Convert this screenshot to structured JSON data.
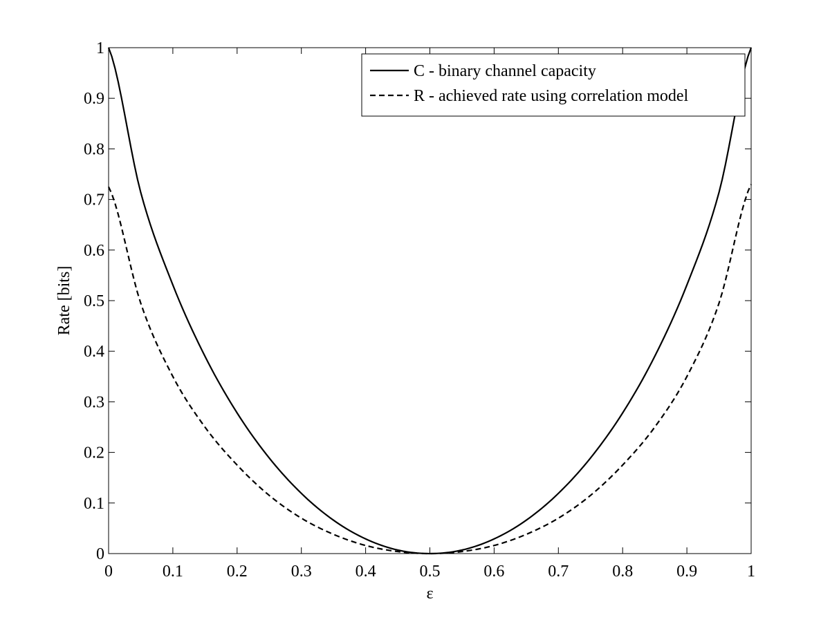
{
  "chart_data": {
    "type": "line",
    "xlabel": "ε",
    "ylabel": "Rate [bits]",
    "xlim": [
      0,
      1
    ],
    "ylim": [
      0,
      1
    ],
    "xticks": [
      "0",
      "0.1",
      "0.2",
      "0.3",
      "0.4",
      "0.5",
      "0.6",
      "0.7",
      "0.8",
      "0.9",
      "1"
    ],
    "yticks": [
      "0",
      "0.1",
      "0.2",
      "0.3",
      "0.4",
      "0.5",
      "0.6",
      "0.7",
      "0.8",
      "0.9",
      "1"
    ],
    "grid": false,
    "legend_position": "top-right",
    "x": [
      0,
      0.05,
      0.1,
      0.15,
      0.2,
      0.25,
      0.3,
      0.35,
      0.4,
      0.45,
      0.5,
      0.55,
      0.6,
      0.65,
      0.7,
      0.75,
      0.8,
      0.85,
      0.9,
      0.95,
      1
    ],
    "series": [
      {
        "name": "C - binary channel capacity",
        "style": "solid",
        "color": "#000000",
        "values": [
          1.0,
          0.714,
          0.531,
          0.39,
          0.278,
          0.189,
          0.119,
          0.066,
          0.029,
          0.007,
          0.0,
          0.007,
          0.029,
          0.066,
          0.119,
          0.189,
          0.278,
          0.39,
          0.531,
          0.714,
          1.0
        ]
      },
      {
        "name": "R - achieved rate using correlation model",
        "style": "dashed",
        "color": "#000000",
        "values": [
          0.725,
          0.495,
          0.35,
          0.25,
          0.175,
          0.115,
          0.07,
          0.038,
          0.016,
          0.004,
          0.0,
          0.004,
          0.016,
          0.038,
          0.07,
          0.115,
          0.175,
          0.25,
          0.35,
          0.495,
          0.73
        ]
      }
    ]
  }
}
